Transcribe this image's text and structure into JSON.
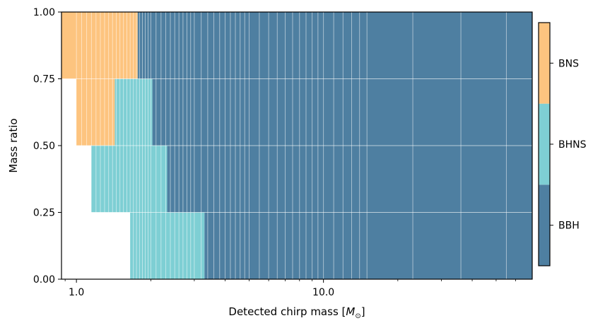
{
  "chart_data": {
    "type": "heatmap",
    "xlabel": "Detected chirp mass [M⊙]",
    "xlabel_text": "Detected chirp mass [",
    "xlabel_symbol": "M",
    "xlabel_sub": "⊙",
    "xlabel_close": "]",
    "ylabel": "Mass ratio",
    "x_scale": "log",
    "xlim": [
      0.87,
      70
    ],
    "ylim": [
      0,
      1
    ],
    "x_ticks": [
      1.0,
      10.0
    ],
    "x_tick_labels": [
      "1.0",
      "10.0"
    ],
    "y_ticks": [
      0,
      0.25,
      0.5,
      0.75,
      1.0
    ],
    "y_tick_labels": [
      "0.00",
      "0.25",
      "0.50",
      "0.75",
      "1.00"
    ],
    "grid": true,
    "categories": [
      "BBH",
      "BHNS",
      "BNS"
    ],
    "colors": {
      "BBH": "#4e7fa1",
      "BHNS": "#7ecfd4",
      "BNS": "#fdc47f"
    },
    "q_rows": [
      {
        "q_range": [
          0,
          0.25
        ],
        "segments": [
          {
            "class": "BHNS",
            "x_range": [
              1.65,
              3.3
            ]
          },
          {
            "class": "BBH",
            "x_range": [
              3.3,
              70
            ]
          }
        ]
      },
      {
        "q_range": [
          0.25,
          0.5
        ],
        "segments": [
          {
            "class": "BHNS",
            "x_range": [
              1.15,
              2.33
            ]
          },
          {
            "class": "BBH",
            "x_range": [
              2.33,
              70
            ]
          }
        ]
      },
      {
        "q_range": [
          0.5,
          0.75
        ],
        "segments": [
          {
            "class": "BNS",
            "x_range": [
              1.0,
              1.43
            ]
          },
          {
            "class": "BHNS",
            "x_range": [
              1.43,
              2.03
            ]
          },
          {
            "class": "BBH",
            "x_range": [
              2.03,
              70
            ]
          }
        ]
      },
      {
        "q_range": [
          0.75,
          1.0
        ],
        "segments": [
          {
            "class": "BNS",
            "x_range": [
              0.87,
              1.77
            ]
          },
          {
            "class": "BBH",
            "x_range": [
              1.77,
              70
            ]
          }
        ]
      }
    ],
    "mass_bin_edges": [
      1.0,
      1.05,
      1.1,
      1.15,
      1.2,
      1.25,
      1.3,
      1.35,
      1.4,
      1.45,
      1.5,
      1.55,
      1.6,
      1.65,
      1.7,
      1.75,
      1.8,
      1.85,
      1.9,
      1.95,
      2.0,
      2.1,
      2.2,
      2.3,
      2.4,
      2.5,
      2.6,
      2.7,
      2.8,
      2.9,
      3.0,
      3.2,
      3.4,
      3.6,
      3.8,
      4.0,
      4.2,
      4.4,
      4.6,
      4.8,
      5.0,
      5.5,
      6.0,
      6.5,
      7.0,
      7.5,
      8.0,
      8.5,
      9.0,
      9.5,
      10.0,
      11.0,
      12.0,
      13.0,
      14.0,
      15.0,
      23.0,
      36.0,
      55.0
    ],
    "colorbar": {
      "labels": [
        "BBH",
        "BHNS",
        "BNS"
      ]
    }
  }
}
